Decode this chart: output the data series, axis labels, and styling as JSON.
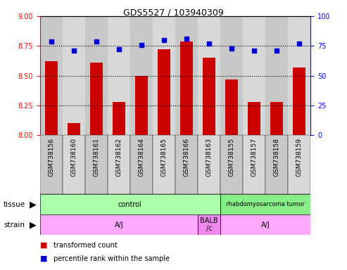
{
  "title": "GDS5527 / 103940309",
  "samples": [
    "GSM738156",
    "GSM738160",
    "GSM738161",
    "GSM738162",
    "GSM738164",
    "GSM738165",
    "GSM738166",
    "GSM738163",
    "GSM738155",
    "GSM738157",
    "GSM738158",
    "GSM738159"
  ],
  "bar_values": [
    8.62,
    8.1,
    8.61,
    8.28,
    8.5,
    8.72,
    8.79,
    8.65,
    8.47,
    8.28,
    8.28,
    8.57
  ],
  "dot_values": [
    79,
    71,
    79,
    72,
    76,
    80,
    81,
    77,
    73,
    71,
    71,
    77
  ],
  "ylim_left": [
    8.0,
    9.0
  ],
  "ylim_right": [
    0,
    100
  ],
  "yticks_left": [
    8.0,
    8.25,
    8.5,
    8.75,
    9.0
  ],
  "yticks_right": [
    0,
    25,
    50,
    75,
    100
  ],
  "bar_color": "#cc0000",
  "dot_color": "#0000cc",
  "tick_bg_even": "#c8c8c8",
  "tick_bg_odd": "#d8d8d8",
  "tissue_groups": [
    {
      "label": "control",
      "start": 0,
      "end": 7,
      "color": "#aaffaa"
    },
    {
      "label": "rhabdomyosarcoma tumor",
      "start": 8,
      "end": 11,
      "color": "#88ee88"
    }
  ],
  "strain_groups": [
    {
      "label": "A/J",
      "start": 0,
      "end": 6,
      "color": "#ffaaff"
    },
    {
      "label": "BALB\n/c",
      "start": 7,
      "end": 7,
      "color": "#ee88ee"
    },
    {
      "label": "A/J",
      "start": 8,
      "end": 11,
      "color": "#ffaaff"
    }
  ],
  "legend_items": [
    {
      "label": "transformed count",
      "color": "#cc0000"
    },
    {
      "label": "percentile rank within the sample",
      "color": "#0000cc"
    }
  ],
  "bg_color": "#ffffff"
}
